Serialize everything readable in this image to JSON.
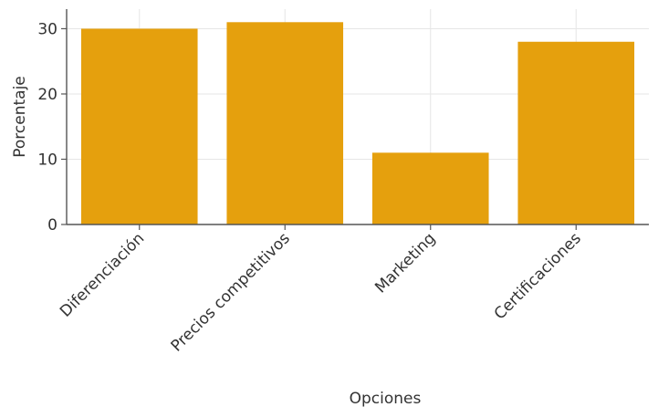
{
  "chart_data": {
    "type": "bar",
    "categories": [
      "Diferenciación",
      "Precios competitivos",
      "Marketing",
      "Certificaciones"
    ],
    "values": [
      30,
      31,
      11,
      28
    ],
    "title": "",
    "xlabel": "Opciones",
    "ylabel": "Porcentaje",
    "ylim": [
      0,
      33
    ],
    "yticks": [
      0,
      10,
      20,
      30
    ],
    "grid": true,
    "bar_color": "#E5A00D"
  }
}
